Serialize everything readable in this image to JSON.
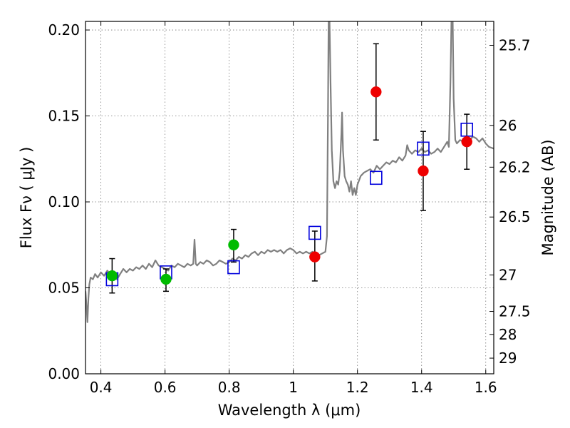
{
  "chart_data": {
    "type": "scatter",
    "title": "",
    "xlabel": "Wavelength  λ (μm)",
    "ylabel": "Flux  Fν  ( μJy )",
    "ylabel_right": "Magnitude (AB)",
    "xlim": [
      0.352,
      1.625
    ],
    "ylim": [
      0.0,
      0.205
    ],
    "grid": true,
    "x_ticks": [
      0.4,
      0.6,
      0.8,
      1.0,
      1.2,
      1.4,
      1.6
    ],
    "x_tick_labels": [
      "0.4",
      "0.6",
      "0.8",
      "1",
      "1.2",
      "1.4",
      "1.6"
    ],
    "y_ticks": [
      0.0,
      0.05,
      0.1,
      0.15,
      0.2
    ],
    "y_tick_labels": [
      "0.00",
      "0.05",
      "0.10",
      "0.15",
      "0.20"
    ],
    "right_ticks": [
      {
        "label": "25.7",
        "flux": 0.1911
      },
      {
        "label": "26",
        "flux": 0.1445
      },
      {
        "label": "26.2",
        "flux": 0.1202
      },
      {
        "label": "26.5",
        "flux": 0.0912
      },
      {
        "label": "27",
        "flux": 0.0575
      },
      {
        "label": "27.5",
        "flux": 0.0363
      },
      {
        "label": "28",
        "flux": 0.0229
      },
      {
        "label": "29",
        "flux": 0.0091
      }
    ],
    "series": [
      {
        "kind": "line",
        "color": "#808080",
        "points": [
          [
            0.352,
            0.048
          ],
          [
            0.356,
            0.037
          ],
          [
            0.358,
            0.03
          ],
          [
            0.361,
            0.044
          ],
          [
            0.364,
            0.052
          ],
          [
            0.368,
            0.056
          ],
          [
            0.375,
            0.055
          ],
          [
            0.382,
            0.058
          ],
          [
            0.39,
            0.056
          ],
          [
            0.4,
            0.059
          ],
          [
            0.41,
            0.057
          ],
          [
            0.42,
            0.06
          ],
          [
            0.43,
            0.058
          ],
          [
            0.44,
            0.056
          ],
          [
            0.45,
            0.055
          ],
          [
            0.46,
            0.058
          ],
          [
            0.47,
            0.061
          ],
          [
            0.48,
            0.059
          ],
          [
            0.49,
            0.061
          ],
          [
            0.5,
            0.06
          ],
          [
            0.51,
            0.062
          ],
          [
            0.52,
            0.061
          ],
          [
            0.53,
            0.063
          ],
          [
            0.54,
            0.061
          ],
          [
            0.55,
            0.064
          ],
          [
            0.56,
            0.062
          ],
          [
            0.57,
            0.066
          ],
          [
            0.58,
            0.063
          ],
          [
            0.59,
            0.062
          ],
          [
            0.6,
            0.061
          ],
          [
            0.61,
            0.06
          ],
          [
            0.62,
            0.063
          ],
          [
            0.63,
            0.062
          ],
          [
            0.64,
            0.064
          ],
          [
            0.65,
            0.063
          ],
          [
            0.66,
            0.062
          ],
          [
            0.67,
            0.064
          ],
          [
            0.68,
            0.063
          ],
          [
            0.688,
            0.064
          ],
          [
            0.692,
            0.078
          ],
          [
            0.696,
            0.064
          ],
          [
            0.7,
            0.063
          ],
          [
            0.71,
            0.065
          ],
          [
            0.72,
            0.064
          ],
          [
            0.73,
            0.066
          ],
          [
            0.74,
            0.065
          ],
          [
            0.75,
            0.063
          ],
          [
            0.76,
            0.064
          ],
          [
            0.77,
            0.066
          ],
          [
            0.78,
            0.065
          ],
          [
            0.79,
            0.064
          ],
          [
            0.8,
            0.065
          ],
          [
            0.81,
            0.067
          ],
          [
            0.82,
            0.066
          ],
          [
            0.83,
            0.068
          ],
          [
            0.84,
            0.067
          ],
          [
            0.85,
            0.069
          ],
          [
            0.86,
            0.068
          ],
          [
            0.87,
            0.07
          ],
          [
            0.88,
            0.071
          ],
          [
            0.89,
            0.069
          ],
          [
            0.9,
            0.071
          ],
          [
            0.91,
            0.07
          ],
          [
            0.92,
            0.072
          ],
          [
            0.93,
            0.071
          ],
          [
            0.94,
            0.072
          ],
          [
            0.95,
            0.071
          ],
          [
            0.96,
            0.072
          ],
          [
            0.97,
            0.07
          ],
          [
            0.98,
            0.072
          ],
          [
            0.99,
            0.073
          ],
          [
            1.0,
            0.072
          ],
          [
            1.01,
            0.07
          ],
          [
            1.02,
            0.071
          ],
          [
            1.03,
            0.07
          ],
          [
            1.04,
            0.071
          ],
          [
            1.05,
            0.07
          ],
          [
            1.06,
            0.071
          ],
          [
            1.07,
            0.07
          ],
          [
            1.08,
            0.069
          ],
          [
            1.09,
            0.07
          ],
          [
            1.1,
            0.071
          ],
          [
            1.105,
            0.08
          ],
          [
            1.108,
            0.15
          ],
          [
            1.11,
            0.205
          ],
          [
            1.113,
            0.205
          ],
          [
            1.116,
            0.17
          ],
          [
            1.12,
            0.13
          ],
          [
            1.125,
            0.112
          ],
          [
            1.13,
            0.108
          ],
          [
            1.135,
            0.112
          ],
          [
            1.14,
            0.11
          ],
          [
            1.145,
            0.118
          ],
          [
            1.15,
            0.14
          ],
          [
            1.152,
            0.152
          ],
          [
            1.155,
            0.13
          ],
          [
            1.16,
            0.115
          ],
          [
            1.165,
            0.112
          ],
          [
            1.17,
            0.11
          ],
          [
            1.175,
            0.106
          ],
          [
            1.18,
            0.112
          ],
          [
            1.185,
            0.104
          ],
          [
            1.19,
            0.108
          ],
          [
            1.195,
            0.104
          ],
          [
            1.2,
            0.11
          ],
          [
            1.21,
            0.115
          ],
          [
            1.22,
            0.117
          ],
          [
            1.23,
            0.118
          ],
          [
            1.24,
            0.119
          ],
          [
            1.25,
            0.117
          ],
          [
            1.26,
            0.121
          ],
          [
            1.27,
            0.119
          ],
          [
            1.28,
            0.121
          ],
          [
            1.29,
            0.123
          ],
          [
            1.3,
            0.122
          ],
          [
            1.31,
            0.124
          ],
          [
            1.32,
            0.123
          ],
          [
            1.33,
            0.126
          ],
          [
            1.34,
            0.124
          ],
          [
            1.35,
            0.127
          ],
          [
            1.355,
            0.133
          ],
          [
            1.36,
            0.13
          ],
          [
            1.37,
            0.128
          ],
          [
            1.38,
            0.13
          ],
          [
            1.39,
            0.129
          ],
          [
            1.4,
            0.131
          ],
          [
            1.41,
            0.129
          ],
          [
            1.42,
            0.13
          ],
          [
            1.43,
            0.128
          ],
          [
            1.44,
            0.129
          ],
          [
            1.45,
            0.131
          ],
          [
            1.46,
            0.129
          ],
          [
            1.47,
            0.132
          ],
          [
            1.48,
            0.135
          ],
          [
            1.485,
            0.132
          ],
          [
            1.49,
            0.17
          ],
          [
            1.493,
            0.205
          ],
          [
            1.497,
            0.205
          ],
          [
            1.5,
            0.16
          ],
          [
            1.505,
            0.136
          ],
          [
            1.51,
            0.134
          ],
          [
            1.52,
            0.136
          ],
          [
            1.53,
            0.135
          ],
          [
            1.54,
            0.137
          ],
          [
            1.55,
            0.136
          ],
          [
            1.56,
            0.138
          ],
          [
            1.57,
            0.137
          ],
          [
            1.58,
            0.135
          ],
          [
            1.59,
            0.137
          ],
          [
            1.6,
            0.134
          ],
          [
            1.61,
            0.132
          ],
          [
            1.625,
            0.131
          ]
        ]
      },
      {
        "kind": "points",
        "marker": "circle",
        "color": "#00bb00",
        "points": [
          {
            "x": 0.435,
            "y": 0.057,
            "err": [
              0.047,
              0.067
            ]
          },
          {
            "x": 0.603,
            "y": 0.055,
            "err": [
              0.048,
              0.061
            ]
          },
          {
            "x": 0.814,
            "y": 0.075,
            "err": [
              0.065,
              0.084
            ]
          }
        ]
      },
      {
        "kind": "points",
        "marker": "circle",
        "color": "#ee0000",
        "points": [
          {
            "x": 1.067,
            "y": 0.068,
            "err": [
              0.054,
              0.083
            ]
          },
          {
            "x": 1.258,
            "y": 0.164,
            "err": [
              0.136,
              0.192
            ]
          },
          {
            "x": 1.405,
            "y": 0.118,
            "err": [
              0.095,
              0.141
            ]
          },
          {
            "x": 1.541,
            "y": 0.135,
            "err": [
              0.119,
              0.151
            ]
          }
        ]
      },
      {
        "kind": "points",
        "marker": "square",
        "color": "#0000dd",
        "points": [
          {
            "x": 0.435,
            "y": 0.055
          },
          {
            "x": 0.603,
            "y": 0.059
          },
          {
            "x": 0.814,
            "y": 0.062
          },
          {
            "x": 1.067,
            "y": 0.082
          },
          {
            "x": 1.258,
            "y": 0.114
          },
          {
            "x": 1.405,
            "y": 0.131
          },
          {
            "x": 1.541,
            "y": 0.142
          }
        ]
      }
    ]
  }
}
